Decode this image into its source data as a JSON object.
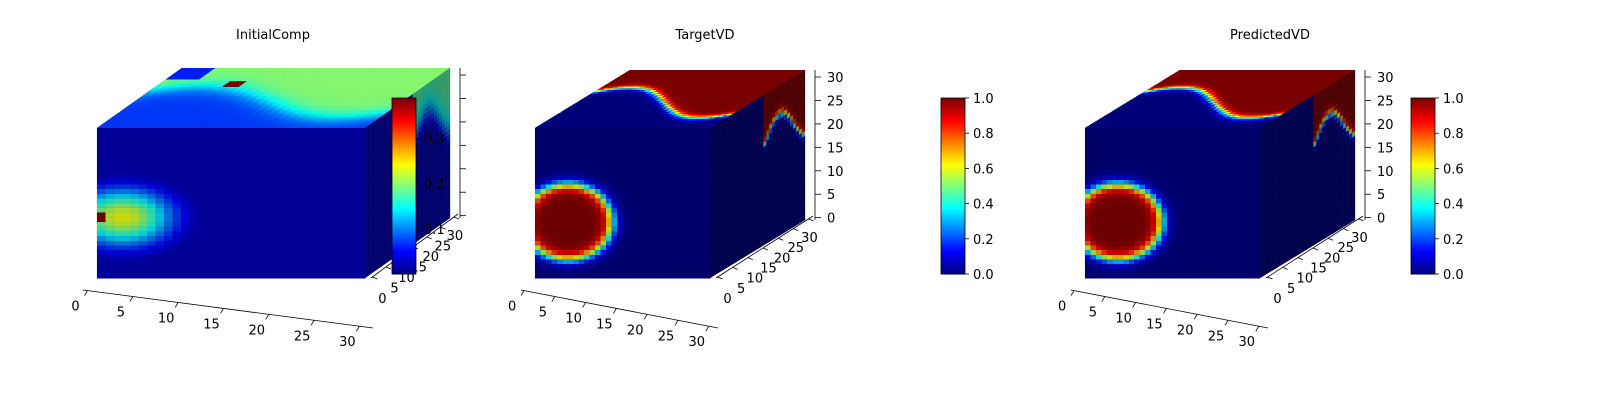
{
  "colormap": "jet",
  "colormap_stops": [
    "#00007f",
    "#0000ff",
    "#007fff",
    "#00ffff",
    "#7fff7f",
    "#ffff00",
    "#ff7f00",
    "#ff0000",
    "#7f0000"
  ],
  "chart_data": [
    {
      "type": "heatmap",
      "subtype": "3d-voxel",
      "title": "InitialComp",
      "x_ticks": [
        "0",
        "5",
        "10",
        "15",
        "20",
        "25",
        "30"
      ],
      "y_ticks": [
        "0",
        "5",
        "10",
        "15",
        "20",
        "25",
        "30"
      ],
      "z_ticks": [],
      "z_tick_marks": 7,
      "colorbar": {
        "range": [
          0.0,
          0.39
        ],
        "ticks": [
          "0.1",
          "0.2",
          "0.3"
        ],
        "tick_values": [
          0.1,
          0.2,
          0.3
        ]
      },
      "grid": true,
      "dims": [
        32,
        32,
        32
      ],
      "front_background": 0.02,
      "front_blob": {
        "center": [
          3,
          13
        ],
        "radius": 7,
        "peak": 0.24
      },
      "top_band_value": 0.2,
      "right_band_value": 0.18,
      "max_value": 0.39
    },
    {
      "type": "heatmap",
      "subtype": "3d-voxel",
      "title": "TargetVD",
      "x_ticks": [
        "0",
        "5",
        "10",
        "15",
        "20",
        "25",
        "30"
      ],
      "y_ticks": [
        "0",
        "5",
        "10",
        "15",
        "20",
        "25",
        "30"
      ],
      "z_ticks": [
        "0",
        "5",
        "10",
        "15",
        "20",
        "25",
        "30"
      ],
      "colorbar": {
        "range": [
          0.0,
          1.0
        ],
        "ticks": [
          "0.0",
          "0.2",
          "0.4",
          "0.6",
          "0.8",
          "1.0"
        ],
        "tick_values": [
          0.0,
          0.2,
          0.4,
          0.6,
          0.8,
          1.0
        ]
      },
      "grid": true,
      "dims": [
        32,
        32,
        32
      ],
      "front_background": 0.0,
      "front_blob": {
        "center": [
          6,
          12
        ],
        "radius": 8,
        "peak": 1.0
      },
      "top_band_value": 1.0,
      "right_band_value": 1.0,
      "max_value": 1.0
    },
    {
      "type": "heatmap",
      "subtype": "3d-voxel",
      "title": "PredictedVD",
      "x_ticks": [
        "0",
        "5",
        "10",
        "15",
        "20",
        "25",
        "30"
      ],
      "y_ticks": [
        "0",
        "5",
        "10",
        "15",
        "20",
        "25",
        "30"
      ],
      "z_ticks": [
        "0",
        "5",
        "10",
        "15",
        "20",
        "25",
        "30"
      ],
      "colorbar": {
        "range": [
          0.0,
          1.0
        ],
        "ticks": [
          "0.0",
          "0.2",
          "0.4",
          "0.6",
          "0.8",
          "1.0"
        ],
        "tick_values": [
          0.0,
          0.2,
          0.4,
          0.6,
          0.8,
          1.0
        ]
      },
      "grid": true,
      "dims": [
        32,
        32,
        32
      ],
      "front_background": 0.0,
      "front_blob": {
        "center": [
          6,
          12
        ],
        "radius": 8,
        "peak": 1.0
      },
      "top_band_value": 1.0,
      "right_band_value": 1.0,
      "max_value": 1.0
    }
  ]
}
